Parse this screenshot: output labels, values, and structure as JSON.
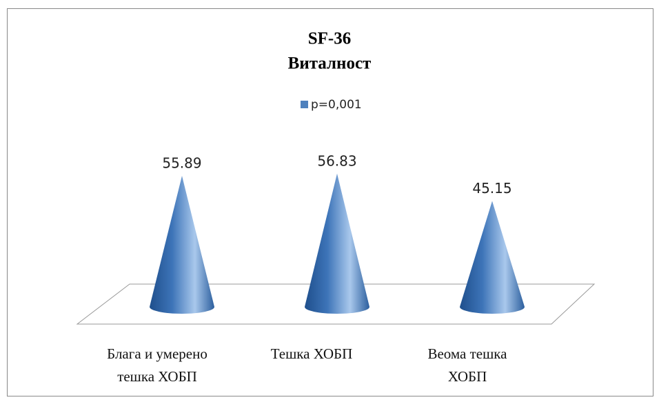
{
  "chart_data": {
    "type": "cone",
    "title": "SF-36",
    "subtitle": "Виталност",
    "categories": [
      [
        "Блага и умерено",
        "тешка ХОБП"
      ],
      [
        "Тешка ХОБП"
      ],
      [
        "Веома тешка",
        "ХОБП"
      ]
    ],
    "series": [
      {
        "name": "p=0,001",
        "color": "#4f81bd",
        "values": [
          55.89,
          56.83,
          45.15
        ]
      }
    ],
    "legend": "top"
  }
}
